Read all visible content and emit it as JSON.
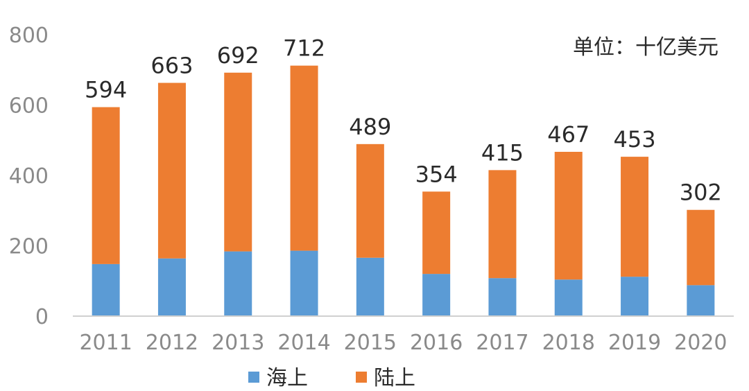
{
  "chart_data": {
    "type": "bar",
    "stacked": true,
    "categories": [
      "2011",
      "2012",
      "2013",
      "2014",
      "2015",
      "2016",
      "2017",
      "2018",
      "2019",
      "2020"
    ],
    "series": [
      {
        "name": "海上",
        "color": "#5b9bd5",
        "values": [
          148,
          164,
          184,
          186,
          166,
          120,
          108,
          104,
          112,
          88
        ]
      },
      {
        "name": "陆上",
        "color": "#ed7d31",
        "values": [
          446,
          499,
          508,
          526,
          323,
          234,
          307,
          363,
          341,
          214
        ]
      }
    ],
    "totals": [
      "594",
      "663",
      "692",
      "712",
      "489",
      "354",
      "415",
      "467",
      "453",
      "302"
    ],
    "ylim": [
      0,
      800
    ],
    "yticks": [
      "0",
      "200",
      "400",
      "600",
      "800"
    ],
    "unit_note": "单位：十亿美元",
    "legend_position": "bottom",
    "grid": false
  }
}
